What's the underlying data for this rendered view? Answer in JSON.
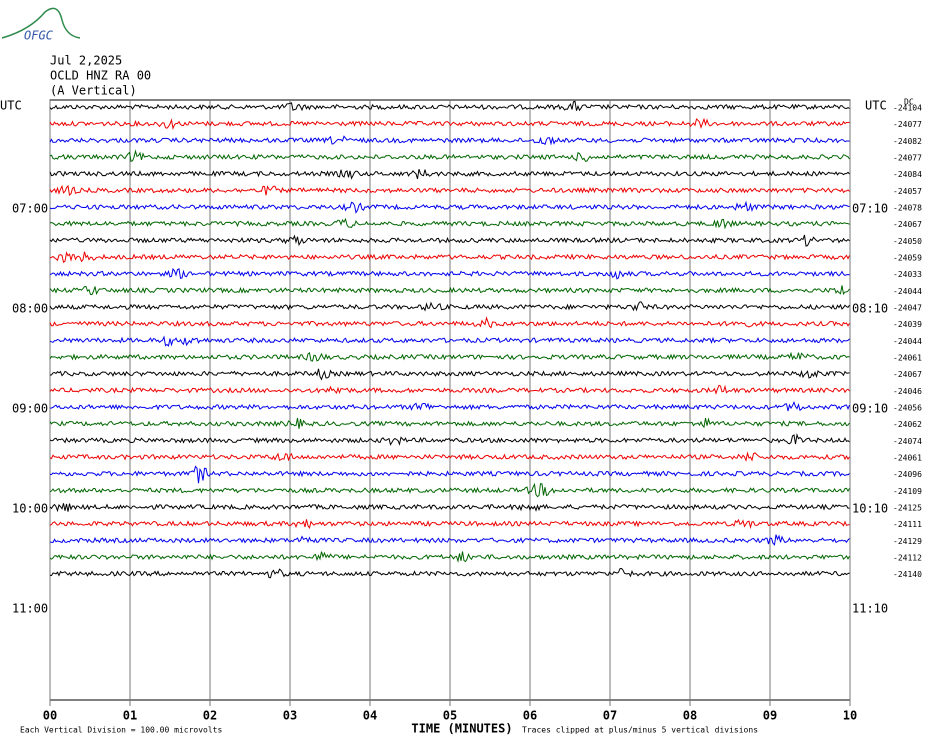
{
  "header": {
    "logo": "OFGC",
    "date": "Jul 2,2025",
    "station": "OCLD HNZ RA 00",
    "component": "(A Vertical)"
  },
  "left_labels": [
    "UTC",
    "07:00",
    "08:00",
    "09:00",
    "10:00",
    "11:00"
  ],
  "right_labels": [
    "UTC",
    "07:10",
    "08:10",
    "09:10",
    "10:10",
    "11:10"
  ],
  "dc_label": "DC",
  "dc_offsets": [
    "-24104",
    "-24077",
    "-24082",
    "-24077",
    "-24084",
    "-24057",
    "-24078",
    "-24067",
    "-24050",
    "-24059",
    "-24033",
    "-24044",
    "-24047",
    "-24039",
    "-24044",
    "-24061",
    "-24067",
    "-24046",
    "-24056",
    "-24062",
    "-24074",
    "-24061",
    "-24096",
    "-24109",
    "-24125",
    "-24111",
    "-24129",
    "-24112",
    "-24140"
  ],
  "x_ticks": [
    "00",
    "01",
    "02",
    "03",
    "04",
    "05",
    "06",
    "07",
    "08",
    "09",
    "10"
  ],
  "x_axis_title": "TIME (MINUTES)",
  "footer": {
    "scale": "Each Vertical Division =  100.00 microvolts",
    "clip": "Traces clipped at plus/minus 5 vertical divisions"
  }
}
